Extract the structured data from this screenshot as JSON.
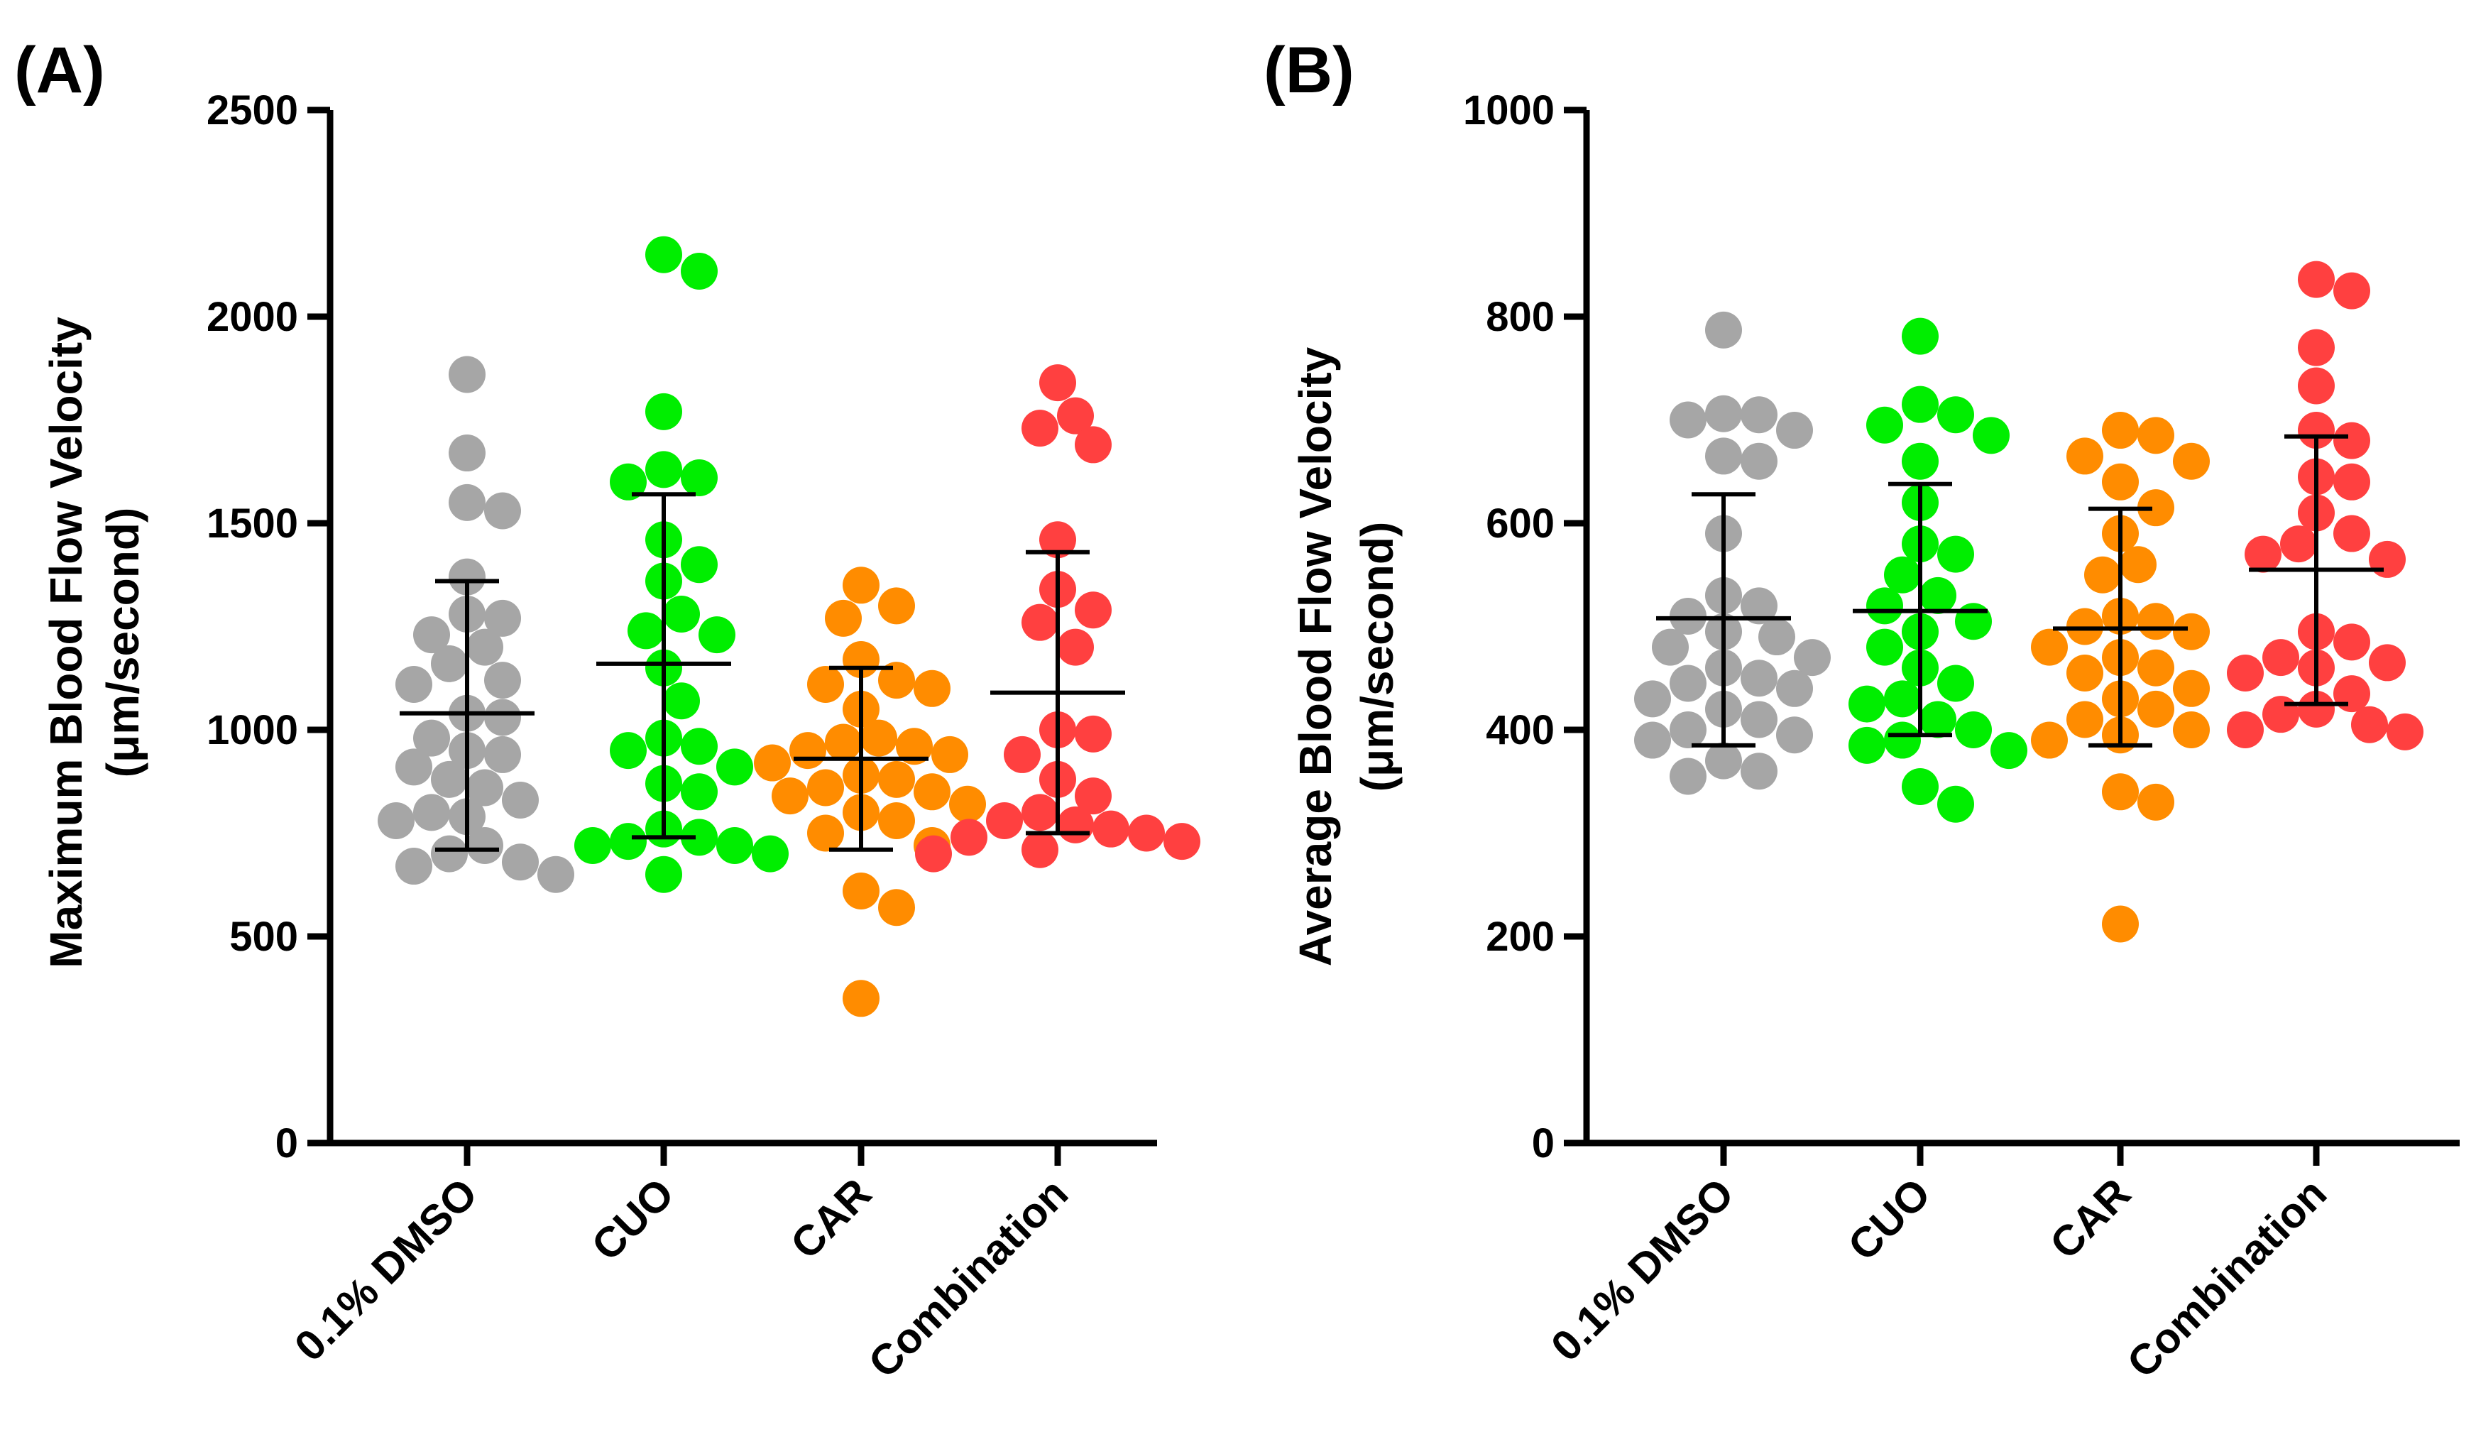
{
  "chart_data": [
    {
      "panel_label": "(A)",
      "type": "scatter",
      "subtype": "dot-plot with mean and SD",
      "ylabel_line1": "Maximum Blood Flow Velocity",
      "ylabel_line2": "(μm/second)",
      "ylim": [
        0,
        2500
      ],
      "yticks": [
        0,
        500,
        1000,
        1500,
        2000,
        2500
      ],
      "ytick_labels": [
        "0",
        "500",
        "1000",
        "1500",
        "2000",
        "2500"
      ],
      "categories": [
        "0.1% DMSO",
        "CUO",
        "CAR",
        "Combination"
      ],
      "colors": [
        "#a6a6a6",
        "#00ee00",
        "#ff8c00",
        "#ff4040"
      ],
      "means": [
        1040,
        1160,
        930,
        1090
      ],
      "sd_upper": [
        1360,
        1570,
        1150,
        1430
      ],
      "sd_lower": [
        710,
        740,
        710,
        750
      ],
      "points": [
        [
          1860,
          1670,
          1550,
          1530,
          1370,
          1280,
          1270,
          1230,
          1200,
          1160,
          1120,
          1110,
          1040,
          1030,
          980,
          950,
          940,
          910,
          880,
          860,
          830,
          800,
          790,
          780,
          720,
          700,
          680,
          670,
          650
        ],
        [
          2150,
          2110,
          1770,
          1630,
          1610,
          1600,
          1460,
          1400,
          1360,
          1280,
          1240,
          1230,
          1150,
          1070,
          980,
          960,
          950,
          910,
          870,
          850,
          760,
          740,
          730,
          720,
          720,
          700,
          650
        ],
        [
          1350,
          1300,
          1270,
          1170,
          1120,
          1110,
          1100,
          1050,
          980,
          970,
          960,
          950,
          940,
          920,
          890,
          880,
          860,
          850,
          840,
          820,
          800,
          780,
          750,
          720,
          610,
          570,
          350
        ],
        [
          1840,
          1760,
          1730,
          1690,
          1460,
          1340,
          1290,
          1260,
          1200,
          1000,
          990,
          940,
          880,
          840,
          800,
          780,
          770,
          760,
          750,
          740,
          730,
          710,
          700
        ]
      ]
    },
    {
      "panel_label": "(B)",
      "type": "scatter",
      "subtype": "dot-plot with mean and SD",
      "ylabel_line1": "Average Blood Flow Velocity",
      "ylabel_line2": "(μm/second)",
      "ylim": [
        0,
        1000
      ],
      "yticks": [
        0,
        200,
        400,
        600,
        800,
        1000
      ],
      "ytick_labels": [
        "0",
        "200",
        "400",
        "600",
        "800",
        "1000"
      ],
      "categories": [
        "0.1% DMSO",
        "CUO",
        "CAR",
        "Combination"
      ],
      "colors": [
        "#a6a6a6",
        "#00ee00",
        "#ff8c00",
        "#ff4040"
      ],
      "means": [
        508,
        515,
        498,
        555
      ],
      "sd_upper": [
        628,
        638,
        614,
        684
      ],
      "sd_lower": [
        385,
        395,
        385,
        425
      ],
      "points": [
        [
          787,
          706,
          705,
          700,
          690,
          665,
          660,
          590,
          530,
          520,
          510,
          495,
          490,
          480,
          470,
          460,
          450,
          445,
          440,
          430,
          420,
          410,
          400,
          395,
          390,
          370,
          360,
          355
        ],
        [
          781,
          715,
          705,
          695,
          685,
          660,
          620,
          580,
          570,
          550,
          530,
          520,
          505,
          495,
          480,
          460,
          445,
          430,
          425,
          410,
          400,
          390,
          385,
          380,
          345,
          328
        ],
        [
          690,
          685,
          665,
          660,
          640,
          615,
          590,
          560,
          550,
          510,
          505,
          500,
          495,
          480,
          470,
          460,
          455,
          440,
          430,
          420,
          410,
          400,
          395,
          390,
          340,
          330,
          212
        ],
        [
          836,
          825,
          770,
          733,
          690,
          680,
          645,
          640,
          610,
          590,
          580,
          570,
          565,
          495,
          485,
          470,
          465,
          460,
          455,
          435,
          420,
          415,
          405,
          400,
          398
        ]
      ]
    }
  ]
}
